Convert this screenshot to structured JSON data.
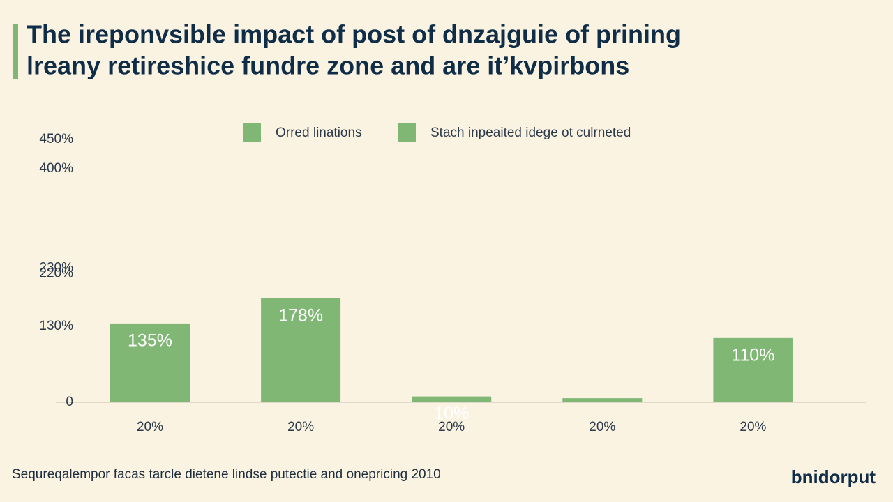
{
  "chart_data": {
    "type": "bar",
    "title_lines": [
      "The ireponvѕible impact of post of dnzajguie of prining",
      "lreany retireshice fundre zone and are itʼkvpirbons"
    ],
    "categories": [
      "20%",
      "20%",
      "20%",
      "20%",
      "20%"
    ],
    "values": [
      135,
      178,
      10,
      7,
      110
    ],
    "value_labels": [
      "135%",
      "178%",
      "10%",
      null,
      "110%"
    ],
    "color": "#80b775",
    "legend": [
      {
        "name": "Orred linations",
        "color": "#80b775"
      },
      {
        "name": "Stach inpeaited idege ot culrneted",
        "color": "#80b775"
      }
    ],
    "ylim": [
      0,
      450
    ],
    "yticks": [
      0,
      {
        "value": 130,
        "label": "130%"
      },
      {
        "value": 220,
        "label": "220%"
      },
      {
        "value": 230,
        "label": "230%"
      },
      {
        "value": 400,
        "label": "400%"
      },
      {
        "value": 450,
        "label": "450%"
      }
    ],
    "footer": "Sequreqalempor facas tarcle dietene lindse putectie and onepricing 2010",
    "logo": "bnidorput"
  }
}
